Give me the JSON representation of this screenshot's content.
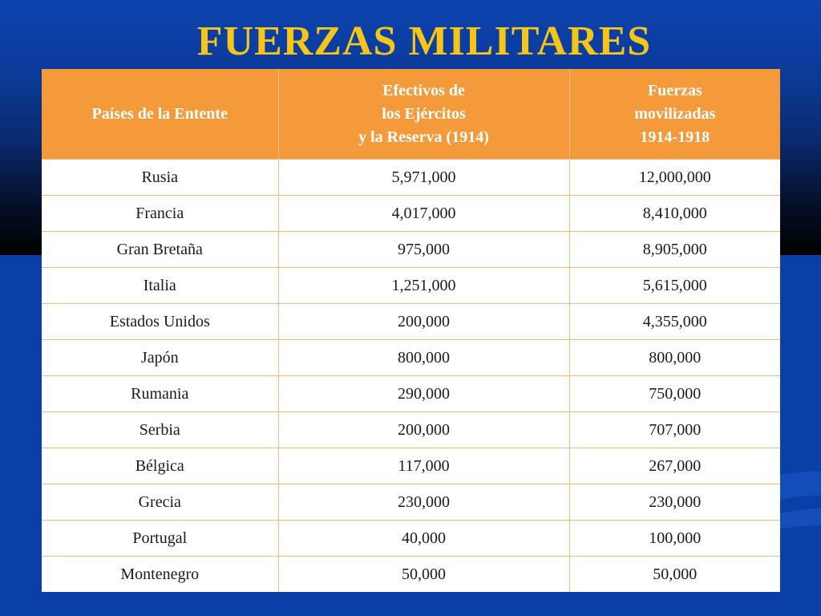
{
  "title": "FUERZAS MILITARES",
  "colors": {
    "background": "#0a3fa8",
    "title": "#f5c518",
    "header_bg": "#f49a3a"
  },
  "chart_data": {
    "type": "table",
    "columns": [
      [
        "Países de la Entente"
      ],
      [
        "Efectivos de",
        "los Ejércitos",
        "y la Reserva (1914)"
      ],
      [
        "Fuerzas",
        "movilizadas",
        "1914-1918"
      ]
    ],
    "rows": [
      [
        "Rusia",
        "5,971,000",
        "12,000,000"
      ],
      [
        "Francia",
        "4,017,000",
        "8,410,000"
      ],
      [
        "Gran Bretaña",
        "975,000",
        "8,905,000"
      ],
      [
        "Italia",
        "1,251,000",
        "5,615,000"
      ],
      [
        "Estados Unidos",
        "200,000",
        "4,355,000"
      ],
      [
        "Japón",
        "800,000",
        "800,000"
      ],
      [
        "Rumania",
        "290,000",
        "750,000"
      ],
      [
        "Serbia",
        "200,000",
        "707,000"
      ],
      [
        "Bélgica",
        "117,000",
        "267,000"
      ],
      [
        "Grecia",
        "230,000",
        "230,000"
      ],
      [
        "Portugal",
        "40,000",
        "100,000"
      ],
      [
        "Montenegro",
        "50,000",
        "50,000"
      ]
    ]
  }
}
